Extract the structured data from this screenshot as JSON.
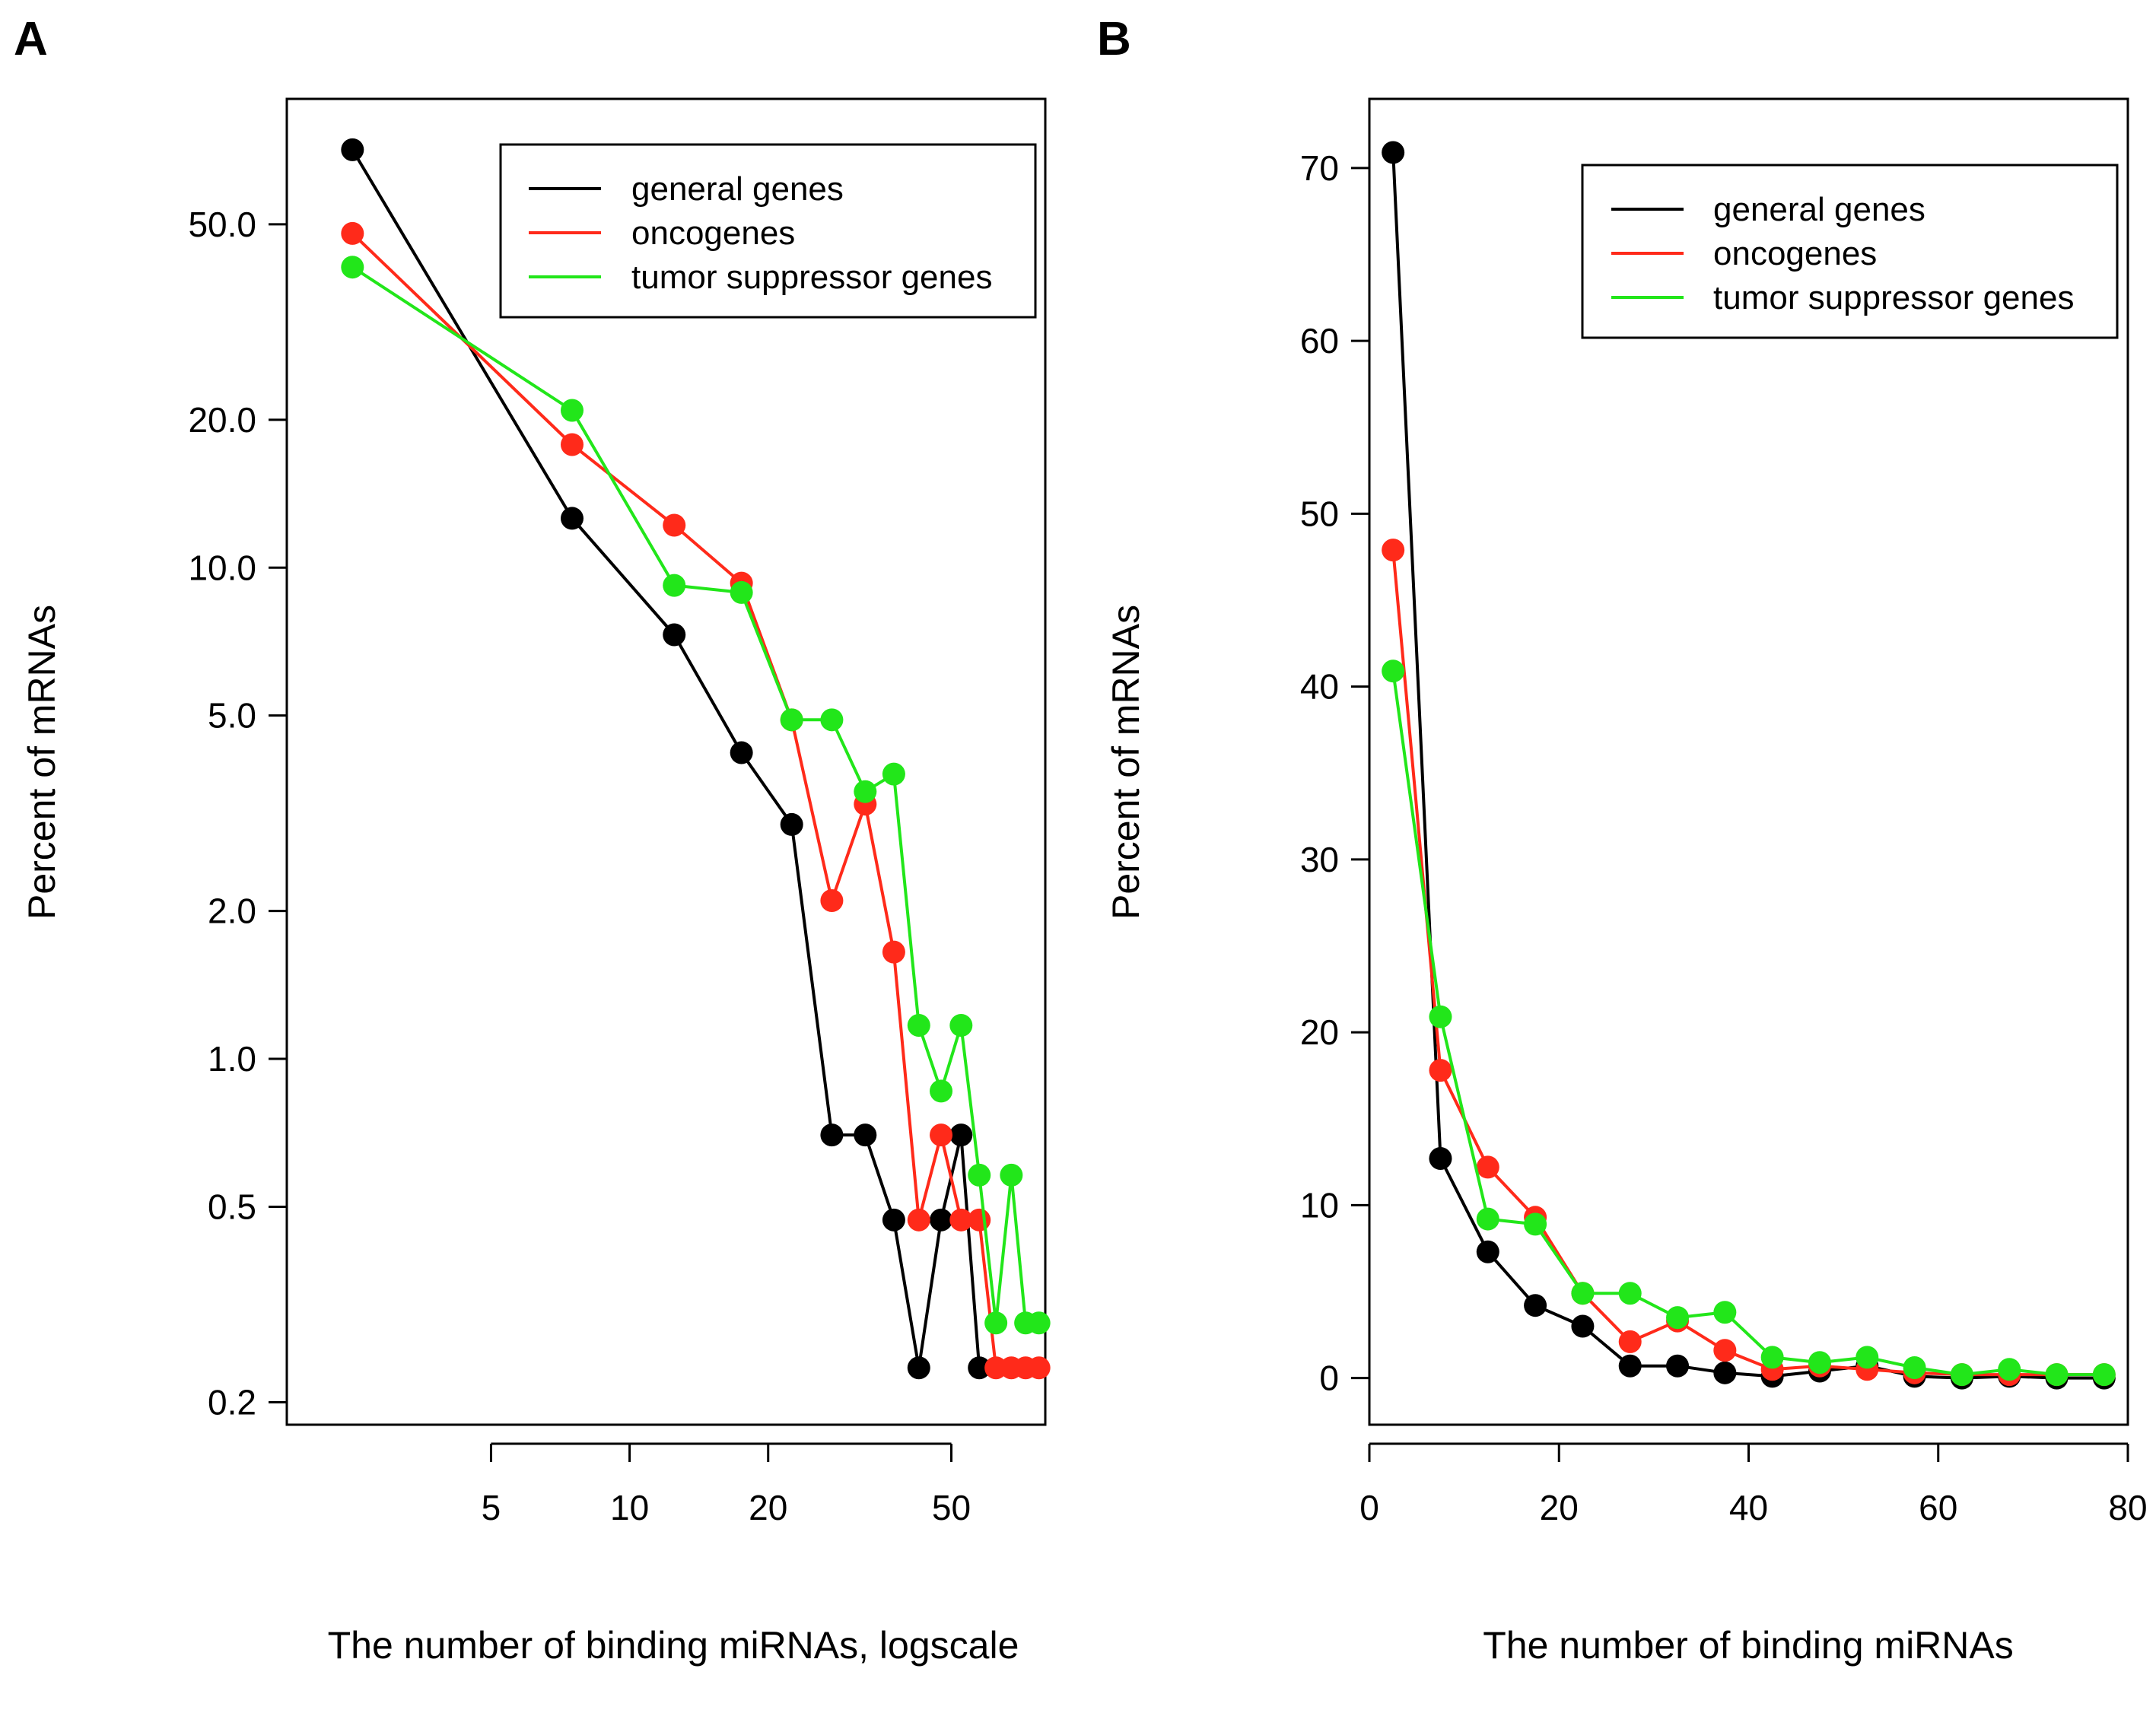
{
  "colors": {
    "general": "#000000",
    "onco": "#ff2a1a",
    "tsg": "#22e61a"
  },
  "chart_data": [
    {
      "panel": "A",
      "type": "line",
      "xscale": "log",
      "yscale": "log",
      "xlabel": "The number of binding miRNAs, logscale",
      "ylabel": "Percent of mRNAs",
      "xlim": [
        1.8,
        80
      ],
      "ylim": [
        0.18,
        90
      ],
      "xticks": [
        5,
        10,
        20,
        50
      ],
      "xtick_labels": [
        "5",
        "10",
        "20",
        "50"
      ],
      "yticks": [
        0.2,
        0.5,
        1,
        2,
        5,
        10,
        20,
        50
      ],
      "ytick_labels": [
        "0.2",
        "0.5",
        "1.0",
        "2.0",
        "5.0",
        "10.0",
        "20.0",
        "50.0"
      ],
      "legend": {
        "position": "top-right",
        "entries": [
          "general genes",
          "oncogenes",
          "tumor suppressor genes"
        ]
      },
      "series": [
        {
          "name": "general genes",
          "color_key": "general",
          "x": [
            2.5,
            7.5,
            12.5,
            17.5,
            22.5,
            27.5,
            32.5,
            37.5,
            42.5,
            47.5,
            52.5,
            57.5
          ],
          "y": [
            70.9,
            12.6,
            7.3,
            4.2,
            3.0,
            0.7,
            0.7,
            0.47,
            0.235,
            0.47,
            0.7,
            0.235
          ]
        },
        {
          "name": "oncogenes",
          "color_key": "onco",
          "x": [
            2.5,
            7.5,
            12.5,
            17.5,
            22.5,
            27.5,
            32.5,
            37.5,
            42.5,
            47.5,
            52.5,
            57.5,
            62.5,
            67.5,
            72.5,
            77.5
          ],
          "y": [
            47.9,
            17.8,
            12.2,
            9.3,
            4.9,
            2.1,
            3.3,
            1.65,
            0.47,
            0.7,
            0.47,
            0.47,
            0.235,
            0.235,
            0.235,
            0.235
          ]
        },
        {
          "name": "tumor suppressor genes",
          "color_key": "tsg",
          "x": [
            2.5,
            7.5,
            12.5,
            17.5,
            22.5,
            27.5,
            32.5,
            37.5,
            42.5,
            47.5,
            52.5,
            57.5,
            62.5,
            67.5,
            72.5,
            77.5
          ],
          "y": [
            40.9,
            20.9,
            9.2,
            8.9,
            4.9,
            4.9,
            3.5,
            3.8,
            1.17,
            0.86,
            1.17,
            0.58,
            0.29,
            0.58,
            0.29,
            0.29
          ]
        }
      ]
    },
    {
      "panel": "B",
      "type": "line",
      "xscale": "linear",
      "yscale": "linear",
      "xlabel": "The number of binding miRNAs",
      "ylabel": "Percent of mRNAs",
      "xlim": [
        0,
        80
      ],
      "ylim": [
        -2.7,
        74
      ],
      "xticks": [
        0,
        20,
        40,
        60,
        80
      ],
      "xtick_labels": [
        "0",
        "20",
        "40",
        "60",
        "80"
      ],
      "yticks": [
        0,
        10,
        20,
        30,
        40,
        50,
        60,
        70
      ],
      "ytick_labels": [
        "0",
        "10",
        "20",
        "30",
        "40",
        "50",
        "60",
        "70"
      ],
      "legend": {
        "position": "top-right",
        "entries": [
          "general genes",
          "oncogenes",
          "tumor suppressor genes"
        ]
      },
      "series": [
        {
          "name": "general genes",
          "color_key": "general",
          "x": [
            2.5,
            7.5,
            12.5,
            17.5,
            22.5,
            27.5,
            32.5,
            37.5,
            42.5,
            47.5,
            52.5,
            57.5,
            62.5,
            67.5,
            72.5,
            77.5
          ],
          "y": [
            70.9,
            12.7,
            7.3,
            4.2,
            3.0,
            0.7,
            0.7,
            0.3,
            0.1,
            0.4,
            0.7,
            0.1,
            0.0,
            0.1,
            0.0,
            0.0
          ]
        },
        {
          "name": "oncogenes",
          "color_key": "onco",
          "x": [
            2.5,
            7.5,
            12.5,
            17.5,
            22.5,
            27.5,
            32.5,
            37.5,
            42.5,
            47.5,
            52.5,
            57.5,
            62.5,
            67.5,
            72.5,
            77.5
          ],
          "y": [
            47.9,
            17.8,
            12.2,
            9.3,
            4.9,
            2.1,
            3.3,
            1.6,
            0.5,
            0.7,
            0.5,
            0.3,
            0.2,
            0.2,
            0.2,
            0.2
          ]
        },
        {
          "name": "tumor suppressor genes",
          "color_key": "tsg",
          "x": [
            2.5,
            7.5,
            12.5,
            17.5,
            22.5,
            27.5,
            32.5,
            37.5,
            42.5,
            47.5,
            52.5,
            57.5,
            62.5,
            67.5,
            72.5,
            77.5
          ],
          "y": [
            40.9,
            20.9,
            9.2,
            8.9,
            4.9,
            4.9,
            3.5,
            3.8,
            1.2,
            0.9,
            1.2,
            0.6,
            0.2,
            0.5,
            0.2,
            0.2
          ]
        }
      ]
    }
  ]
}
